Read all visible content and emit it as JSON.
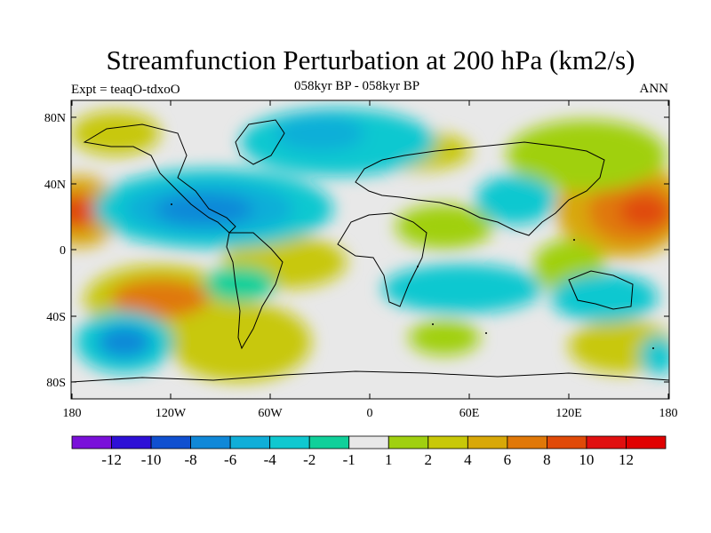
{
  "figure": {
    "title": "Streamfunction Perturbation at 200 hPa (km2/s)",
    "experiment": "Expt = teaqO-tdxoO",
    "period": "058kyr BP - 058kyr BP",
    "season": "ANN"
  },
  "map": {
    "lat_ticks": [
      "80N",
      "40N",
      "0",
      "40S",
      "80S"
    ],
    "lon_ticks": [
      "180",
      "120W",
      "60W",
      "0",
      "60E",
      "120E",
      "180"
    ],
    "background_color": "#e8e8e8"
  },
  "colorbar": {
    "labels": [
      "-12",
      "-10",
      "-8",
      "-6",
      "-4",
      "-2",
      "-1",
      "1",
      "2",
      "4",
      "6",
      "8",
      "10",
      "12"
    ],
    "colors": [
      "#7a10d9",
      "#2e10d6",
      "#1050d0",
      "#1088d8",
      "#10aed8",
      "#10c8d0",
      "#10d09a",
      "#e8e8e8",
      "#a0d010",
      "#c8c808",
      "#d8a808",
      "#e07808",
      "#e04a08",
      "#e01010",
      "#e00000"
    ]
  }
}
